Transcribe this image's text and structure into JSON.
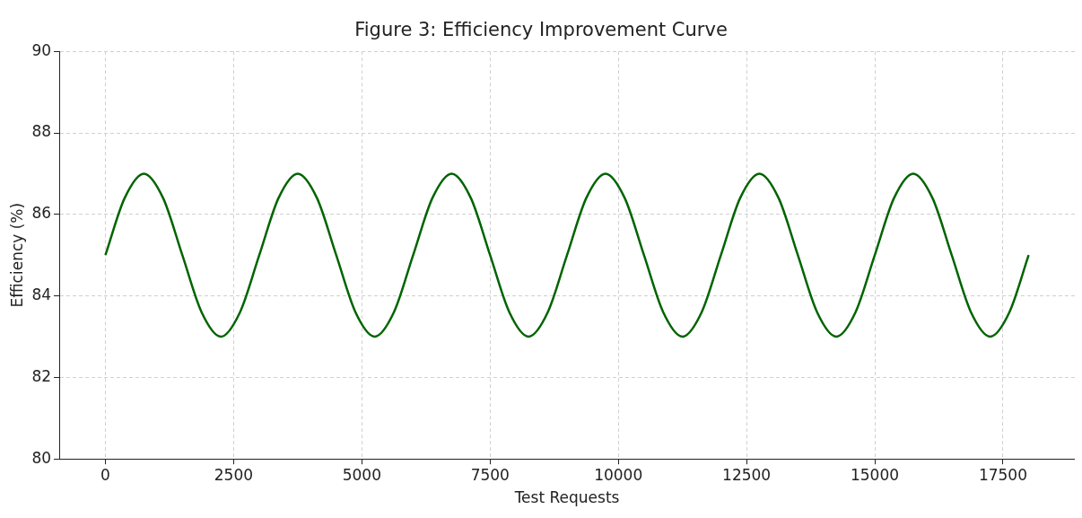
{
  "chart_data": {
    "type": "line",
    "title": "Figure 3: Efficiency Improvement Curve",
    "xlabel": "Test Requests",
    "ylabel": "Efficiency (%)",
    "x": [
      0,
      375,
      750,
      1125,
      1500,
      1875,
      2250,
      2625,
      3000,
      3375,
      3750,
      4125,
      4500,
      4875,
      5250,
      5625,
      6000,
      6375,
      6750,
      7125,
      7500,
      7875,
      8250,
      8625,
      9000,
      9375,
      9750,
      10125,
      10500,
      10875,
      11250,
      11625,
      12000,
      12375,
      12750,
      13125,
      13500,
      13875,
      14250,
      14625,
      15000,
      15375,
      15750,
      16125,
      16500,
      16875,
      17250,
      17625,
      18000
    ],
    "series": [
      {
        "color": "#006400",
        "values": [
          85,
          86.4,
          87,
          86.4,
          85,
          83.6,
          83,
          83.6,
          85,
          86.4,
          87,
          86.4,
          85,
          83.6,
          83,
          83.6,
          85,
          86.4,
          87,
          86.4,
          85,
          83.6,
          83,
          83.6,
          85,
          86.4,
          87,
          86.4,
          85,
          83.6,
          83,
          83.6,
          85,
          86.4,
          87,
          86.4,
          85,
          83.6,
          83,
          83.6,
          85,
          86.4,
          87,
          86.4,
          85,
          83.6,
          83,
          83.6,
          85
        ]
      }
    ],
    "xlim": [
      -900,
      18900
    ],
    "ylim": [
      80,
      90
    ],
    "xticks": [
      0,
      2500,
      5000,
      7500,
      10000,
      12500,
      15000,
      17500
    ],
    "yticks": [
      80,
      82,
      84,
      86,
      88,
      90
    ],
    "grid": true,
    "legend": false,
    "marker": "none",
    "line_style": "solid"
  }
}
